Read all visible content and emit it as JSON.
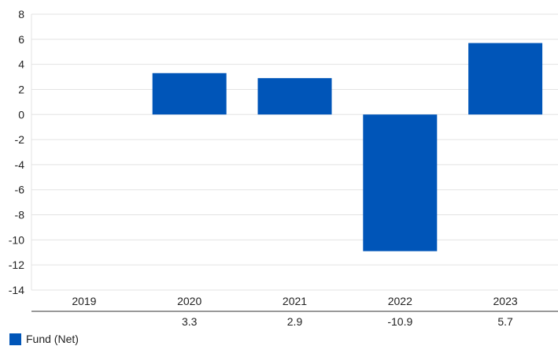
{
  "chart_data": {
    "type": "bar",
    "categories": [
      "2019",
      "2020",
      "2021",
      "2022",
      "2023"
    ],
    "series": [
      {
        "name": "Fund (Net)",
        "values": [
          null,
          3.3,
          2.9,
          -10.9,
          5.7
        ],
        "color": "#0055b8"
      }
    ],
    "table_values": [
      "",
      "3.3",
      "2.9",
      "-10.9",
      "5.7"
    ],
    "ylim": [
      -14,
      8
    ],
    "yticks": [
      8,
      6,
      4,
      2,
      0,
      -2,
      -4,
      -6,
      -8,
      -10,
      -12,
      -14
    ],
    "grid": true,
    "legend": "bottom-left",
    "title": "",
    "xlabel": "",
    "ylabel": ""
  }
}
